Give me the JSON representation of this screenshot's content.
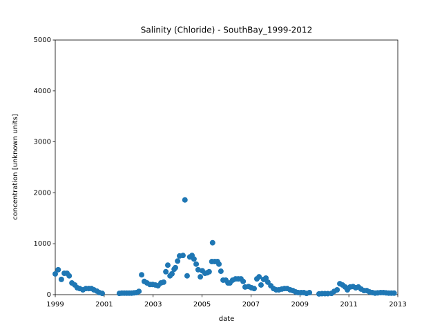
{
  "chart_data": {
    "type": "scatter",
    "title": "Salinity (Chloride) - SouthBay_1999-2012",
    "x_label": "date",
    "y_label": "concentration [unknown units]",
    "color": "#1f77b4",
    "xlim": [
      1999,
      2013
    ],
    "xticks": [
      1999,
      2001,
      2003,
      2005,
      2007,
      2009,
      2011,
      2013
    ],
    "ylim": [
      0,
      5000
    ],
    "yticks": [
      0,
      1000,
      2000,
      3000,
      4000,
      5000
    ],
    "grid": false,
    "x": [
      1999.0,
      1999.12,
      1999.25,
      1999.37,
      1999.48,
      1999.57,
      1999.68,
      1999.8,
      1999.9,
      2000.0,
      2000.13,
      2000.25,
      2000.37,
      2000.48,
      2000.58,
      2000.7,
      2000.8,
      2000.92,
      2001.62,
      2001.72,
      2001.82,
      2001.92,
      2002.02,
      2002.12,
      2002.22,
      2002.32,
      2002.42,
      2002.53,
      2002.64,
      2002.75,
      2002.87,
      2002.98,
      2003.09,
      2003.2,
      2003.32,
      2003.43,
      2003.52,
      2003.6,
      2003.69,
      2003.77,
      2003.86,
      2003.91,
      2004.0,
      2004.08,
      2004.22,
      2004.3,
      2004.39,
      2004.5,
      2004.59,
      2004.67,
      2004.76,
      2004.84,
      2004.93,
      2005.01,
      2005.12,
      2005.21,
      2005.29,
      2005.4,
      2005.43,
      2005.52,
      2005.63,
      2005.69,
      2005.77,
      2005.86,
      2005.97,
      2006.06,
      2006.14,
      2006.25,
      2006.37,
      2006.48,
      2006.59,
      2006.68,
      2006.76,
      2006.9,
      2007.02,
      2007.13,
      2007.24,
      2007.33,
      2007.41,
      2007.52,
      2007.61,
      2007.69,
      2007.81,
      2007.92,
      2008.03,
      2008.14,
      2008.26,
      2008.37,
      2008.48,
      2008.6,
      2008.71,
      2008.82,
      2008.93,
      2009.05,
      2009.16,
      2009.27,
      2009.39,
      2009.78,
      2009.9,
      2010.02,
      2010.14,
      2010.29,
      2010.4,
      2010.52,
      2010.63,
      2010.74,
      2010.85,
      2010.94,
      2011.05,
      2011.17,
      2011.28,
      2011.39,
      2011.5,
      2011.62,
      2011.73,
      2011.84,
      2011.96,
      2012.07,
      2012.18,
      2012.3,
      2012.41,
      2012.52,
      2012.63,
      2012.74,
      2012.85
    ],
    "values": [
      407,
      490,
      300,
      420,
      420,
      370,
      230,
      190,
      135,
      120,
      95,
      120,
      120,
      120,
      95,
      70,
      40,
      25,
      25,
      30,
      30,
      30,
      30,
      30,
      35,
      40,
      65,
      390,
      260,
      230,
      200,
      200,
      190,
      175,
      230,
      245,
      450,
      580,
      370,
      410,
      500,
      530,
      660,
      760,
      770,
      1860,
      370,
      740,
      770,
      700,
      600,
      490,
      350,
      470,
      420,
      430,
      450,
      650,
      1020,
      650,
      650,
      600,
      460,
      285,
      285,
      230,
      230,
      285,
      310,
      310,
      310,
      260,
      150,
      160,
      135,
      120,
      310,
      350,
      190,
      300,
      325,
      245,
      175,
      120,
      95,
      95,
      110,
      120,
      120,
      95,
      80,
      55,
      40,
      40,
      40,
      25,
      40,
      15,
      20,
      20,
      20,
      25,
      65,
      95,
      215,
      190,
      150,
      95,
      150,
      160,
      135,
      150,
      110,
      80,
      80,
      55,
      40,
      30,
      35,
      40,
      40,
      35,
      30,
      30,
      30
    ]
  }
}
